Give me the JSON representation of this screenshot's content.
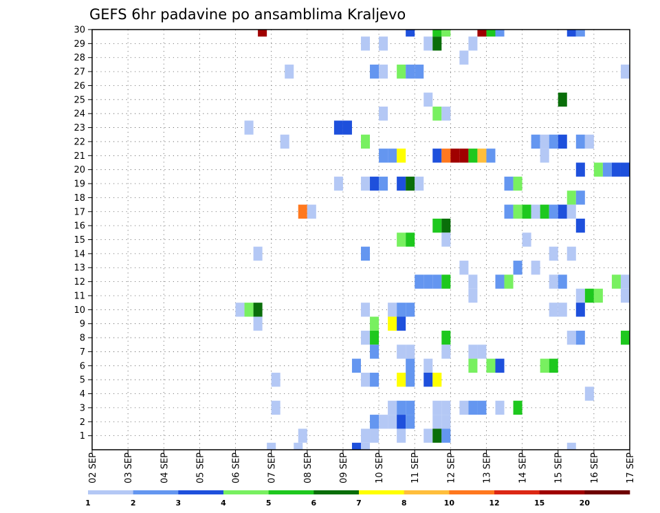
{
  "chart_data": {
    "type": "heatmap",
    "title": "GEFS 6hr padavine po ansamblima Kraljevo",
    "xlabel": "",
    "ylabel": "",
    "x_tick_labels": [
      "02 SEP",
      "03 SEP",
      "04 SEP",
      "05 SEP",
      "06 SEP",
      "07 SEP",
      "08 SEP",
      "09 SEP",
      "10 SEP",
      "11 SEP",
      "12 SEP",
      "13 SEP",
      "14 SEP",
      "15 SEP",
      "16 SEP",
      "17 SEP"
    ],
    "y_tick_labels": [
      "1",
      "2",
      "3",
      "4",
      "5",
      "6",
      "7",
      "8",
      "9",
      "10",
      "11",
      "12",
      "13",
      "14",
      "15",
      "16",
      "17",
      "18",
      "19",
      "20",
      "21",
      "22",
      "23",
      "24",
      "25",
      "26",
      "27",
      "28",
      "29",
      "30"
    ],
    "x_range": [
      0,
      60
    ],
    "y_range": [
      0,
      30
    ],
    "x_unit": "6-hour step from 02 SEP",
    "y_unit": "ensemble member",
    "grid": true,
    "legend_position": "bottom",
    "levels": [
      1,
      2,
      3,
      4,
      5,
      6,
      7,
      8,
      10,
      12,
      15,
      20
    ],
    "colors": [
      "#b4c8f5",
      "#6496f0",
      "#1e50dc",
      "#78f060",
      "#1ec81e",
      "#0a6e0a",
      "#ffff00",
      "#ffbe3c",
      "#ff781e",
      "#dc2814",
      "#a00000",
      "#6e0000"
    ],
    "cells": [
      [
        19.0,
        30,
        11
      ],
      [
        35.5,
        30,
        3
      ],
      [
        38.5,
        30,
        5
      ],
      [
        39.5,
        30,
        4
      ],
      [
        43.5,
        30,
        11
      ],
      [
        44.5,
        30,
        5
      ],
      [
        45.5,
        30,
        2
      ],
      [
        53.5,
        30,
        3
      ],
      [
        54.5,
        30,
        2
      ],
      [
        30.5,
        29,
        1
      ],
      [
        32.5,
        29,
        1
      ],
      [
        37.5,
        29,
        1
      ],
      [
        38.5,
        29,
        6
      ],
      [
        42.5,
        29,
        1
      ],
      [
        41.5,
        28,
        1
      ],
      [
        22.0,
        27,
        1
      ],
      [
        31.5,
        27,
        2
      ],
      [
        32.5,
        27,
        1
      ],
      [
        34.5,
        27,
        4
      ],
      [
        35.5,
        27,
        2
      ],
      [
        36.5,
        27,
        2
      ],
      [
        59.5,
        27,
        1
      ],
      [
        37.5,
        25,
        1
      ],
      [
        52.5,
        25,
        6
      ],
      [
        32.5,
        24,
        1
      ],
      [
        38.5,
        24,
        4
      ],
      [
        39.5,
        24,
        1
      ],
      [
        17.5,
        23,
        1
      ],
      [
        27.5,
        23,
        3
      ],
      [
        28.5,
        23,
        3
      ],
      [
        21.5,
        22,
        1
      ],
      [
        30.5,
        22,
        4
      ],
      [
        49.5,
        22,
        2
      ],
      [
        50.5,
        22,
        1
      ],
      [
        51.5,
        22,
        2
      ],
      [
        52.5,
        22,
        3
      ],
      [
        54.5,
        22,
        2
      ],
      [
        55.5,
        22,
        1
      ],
      [
        32.5,
        21,
        2
      ],
      [
        33.5,
        21,
        2
      ],
      [
        34.5,
        21,
        7
      ],
      [
        38.5,
        21,
        3
      ],
      [
        39.5,
        21,
        9
      ],
      [
        40.5,
        21,
        11
      ],
      [
        41.5,
        21,
        11
      ],
      [
        42.5,
        21,
        5
      ],
      [
        43.5,
        21,
        8
      ],
      [
        44.5,
        21,
        2
      ],
      [
        50.5,
        21,
        1
      ],
      [
        54.5,
        20,
        3
      ],
      [
        56.5,
        20,
        4
      ],
      [
        57.5,
        20,
        2
      ],
      [
        58.5,
        20,
        3
      ],
      [
        59.5,
        20,
        3
      ],
      [
        27.5,
        19,
        1
      ],
      [
        30.5,
        19,
        1
      ],
      [
        31.5,
        19,
        3
      ],
      [
        32.5,
        19,
        2
      ],
      [
        34.5,
        19,
        3
      ],
      [
        35.5,
        19,
        6
      ],
      [
        36.5,
        19,
        1
      ],
      [
        46.5,
        19,
        2
      ],
      [
        47.5,
        19,
        4
      ],
      [
        53.5,
        18,
        4
      ],
      [
        54.5,
        18,
        2
      ],
      [
        23.5,
        17,
        9
      ],
      [
        24.5,
        17,
        1
      ],
      [
        46.5,
        17,
        2
      ],
      [
        47.5,
        17,
        4
      ],
      [
        48.5,
        17,
        5
      ],
      [
        49.5,
        17,
        1
      ],
      [
        50.5,
        17,
        5
      ],
      [
        51.5,
        17,
        2
      ],
      [
        52.5,
        17,
        3
      ],
      [
        53.5,
        17,
        1
      ],
      [
        54.5,
        16,
        3
      ],
      [
        38.5,
        16,
        5
      ],
      [
        39.5,
        16,
        6
      ],
      [
        34.5,
        15,
        4
      ],
      [
        35.5,
        15,
        5
      ],
      [
        39.5,
        15,
        1
      ],
      [
        48.5,
        15,
        1
      ],
      [
        18.5,
        14,
        1
      ],
      [
        30.5,
        14,
        2
      ],
      [
        51.5,
        14,
        1
      ],
      [
        53.5,
        14,
        1
      ],
      [
        41.5,
        13,
        1
      ],
      [
        47.5,
        13,
        2
      ],
      [
        49.5,
        13,
        1
      ],
      [
        36.5,
        12,
        2
      ],
      [
        37.5,
        12,
        2
      ],
      [
        38.5,
        12,
        2
      ],
      [
        39.5,
        12,
        5
      ],
      [
        42.5,
        12,
        1
      ],
      [
        45.5,
        12,
        2
      ],
      [
        46.5,
        12,
        4
      ],
      [
        51.5,
        12,
        1
      ],
      [
        52.5,
        12,
        2
      ],
      [
        58.5,
        12,
        4
      ],
      [
        59.5,
        12,
        1
      ],
      [
        42.5,
        11,
        1
      ],
      [
        54.5,
        11,
        1
      ],
      [
        55.5,
        11,
        5
      ],
      [
        56.5,
        11,
        4
      ],
      [
        59.5,
        11,
        1
      ],
      [
        16.5,
        10,
        1
      ],
      [
        17.5,
        10,
        4
      ],
      [
        18.5,
        10,
        6
      ],
      [
        30.5,
        10,
        1
      ],
      [
        33.5,
        10,
        1
      ],
      [
        34.5,
        10,
        2
      ],
      [
        35.5,
        10,
        2
      ],
      [
        51.5,
        10,
        1
      ],
      [
        52.5,
        10,
        1
      ],
      [
        54.5,
        10,
        3
      ],
      [
        18.5,
        9,
        1
      ],
      [
        31.5,
        9,
        4
      ],
      [
        33.5,
        9,
        7
      ],
      [
        34.5,
        9,
        3
      ],
      [
        30.5,
        8,
        1
      ],
      [
        31.5,
        8,
        5
      ],
      [
        39.5,
        8,
        5
      ],
      [
        53.5,
        8,
        1
      ],
      [
        54.5,
        8,
        2
      ],
      [
        59.5,
        8,
        5
      ],
      [
        31.5,
        7,
        2
      ],
      [
        34.5,
        7,
        1
      ],
      [
        35.5,
        7,
        1
      ],
      [
        39.5,
        7,
        1
      ],
      [
        42.5,
        7,
        1
      ],
      [
        43.5,
        7,
        1
      ],
      [
        29.5,
        6,
        2
      ],
      [
        35.5,
        6,
        2
      ],
      [
        37.5,
        6,
        1
      ],
      [
        42.5,
        6,
        4
      ],
      [
        44.5,
        6,
        4
      ],
      [
        45.5,
        6,
        3
      ],
      [
        50.5,
        6,
        4
      ],
      [
        51.5,
        6,
        5
      ],
      [
        20.5,
        5,
        1
      ],
      [
        30.5,
        5,
        1
      ],
      [
        31.5,
        5,
        2
      ],
      [
        34.5,
        5,
        7
      ],
      [
        35.5,
        5,
        2
      ],
      [
        37.5,
        5,
        3
      ],
      [
        38.5,
        5,
        7
      ],
      [
        55.5,
        4,
        1
      ],
      [
        20.5,
        3,
        1
      ],
      [
        33.5,
        3,
        1
      ],
      [
        34.5,
        3,
        2
      ],
      [
        35.5,
        3,
        2
      ],
      [
        38.5,
        3,
        1
      ],
      [
        39.5,
        3,
        1
      ],
      [
        41.5,
        3,
        1
      ],
      [
        42.5,
        3,
        2
      ],
      [
        43.5,
        3,
        2
      ],
      [
        45.5,
        3,
        1
      ],
      [
        47.5,
        3,
        5
      ],
      [
        31.5,
        2,
        2
      ],
      [
        32.5,
        2,
        1
      ],
      [
        33.5,
        2,
        1
      ],
      [
        34.5,
        2,
        3
      ],
      [
        35.5,
        2,
        2
      ],
      [
        38.5,
        2,
        1
      ],
      [
        39.5,
        2,
        1
      ],
      [
        23.5,
        1,
        1
      ],
      [
        30.5,
        1,
        1
      ],
      [
        31.5,
        1,
        1
      ],
      [
        34.5,
        1,
        1
      ],
      [
        37.5,
        1,
        1
      ],
      [
        38.5,
        1,
        6
      ],
      [
        39.5,
        1,
        2
      ],
      [
        20.0,
        0,
        1
      ],
      [
        23.0,
        0,
        1
      ],
      [
        29.5,
        0,
        3
      ],
      [
        30.5,
        0,
        1
      ],
      [
        53.5,
        0,
        1
      ]
    ]
  }
}
